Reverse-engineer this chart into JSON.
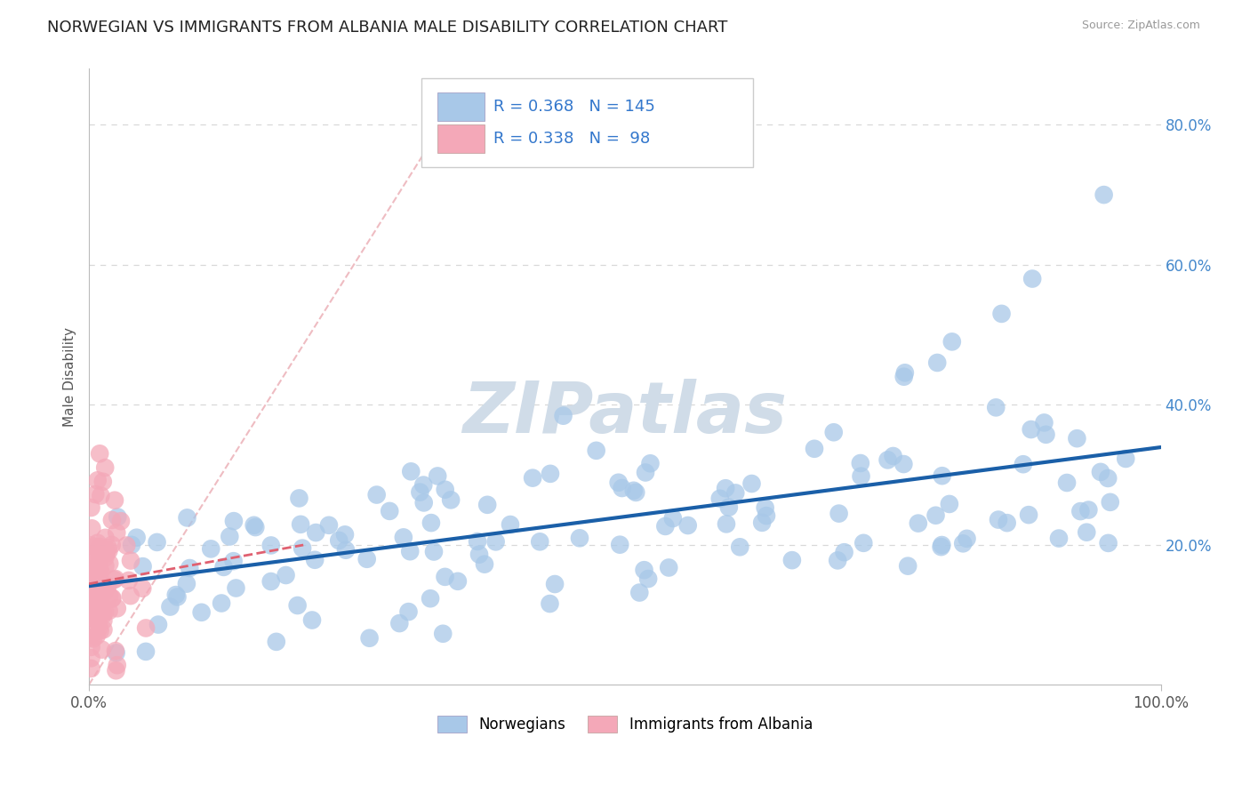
{
  "title": "NORWEGIAN VS IMMIGRANTS FROM ALBANIA MALE DISABILITY CORRELATION CHART",
  "source": "Source: ZipAtlas.com",
  "ylabel": "Male Disability",
  "xlim": [
    0.0,
    1.0
  ],
  "ylim": [
    0.0,
    0.88
  ],
  "ytick_labels": [
    "20.0%",
    "40.0%",
    "60.0%",
    "80.0%"
  ],
  "ytick_values": [
    0.2,
    0.4,
    0.6,
    0.8
  ],
  "xtick_labels": [
    "0.0%",
    "100.0%"
  ],
  "xtick_values": [
    0.0,
    1.0
  ],
  "norwegian_R": 0.368,
  "norwegian_N": 145,
  "albania_R": 0.338,
  "albania_N": 98,
  "blue_marker_color": "#a8c8e8",
  "pink_marker_color": "#f4a8b8",
  "blue_line_color": "#1a5fa8",
  "pink_line_color": "#e06070",
  "diag_line_color": "#e8a0a8",
  "grid_color": "#d8d8d8",
  "background_color": "#ffffff",
  "title_fontsize": 13,
  "axis_label_fontsize": 11,
  "tick_fontsize": 12,
  "legend_label_color": "#3377cc",
  "watermark_text": "ZIPatlas",
  "watermark_color": "#d0dce8",
  "source_color": "#999999",
  "ylabel_color": "#555555",
  "xtick_color": "#555555",
  "ytick_color": "#4488cc"
}
